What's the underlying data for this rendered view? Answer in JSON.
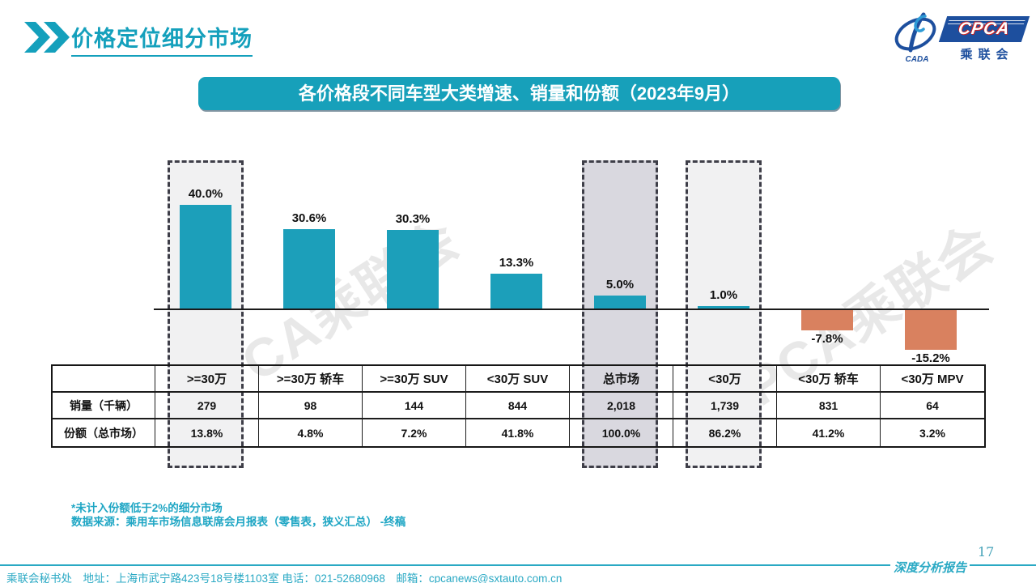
{
  "header": {
    "title": "价格定位细分市场"
  },
  "logo": {
    "cpca": "CPCA",
    "cada": "CADA",
    "subtitle": "乘联会"
  },
  "banner": {
    "text": "各价格段不同车型大类增速、销量和份额（2023年9月）"
  },
  "watermark": {
    "text": "CPCA乘联会"
  },
  "chart_data": {
    "type": "bar",
    "title": "各价格段不同车型大类增速、销量和份额（2023年9月）",
    "categories": [
      ">=30万",
      ">=30万 轿车",
      ">=30万 SUV",
      "<30万 SUV",
      "总市场",
      "<30万",
      "<30万 轿车",
      "<30万 MPV"
    ],
    "series": [
      {
        "name": "增速",
        "unit": "%",
        "values": [
          40.0,
          30.6,
          30.3,
          13.3,
          5.0,
          1.0,
          -7.8,
          -15.2
        ]
      },
      {
        "name": "销量（千辆）",
        "values": [
          279,
          98,
          144,
          844,
          2018,
          1739,
          831,
          64
        ]
      },
      {
        "name": "份额（总市场）",
        "unit": "%",
        "values": [
          13.8,
          4.8,
          7.2,
          41.8,
          100.0,
          86.2,
          41.2,
          3.2
        ]
      }
    ],
    "value_labels": [
      "40.0%",
      "30.6%",
      "30.3%",
      "13.3%",
      "5.0%",
      "1.0%",
      "-7.8%",
      "-15.2%"
    ],
    "positive_color": "#1C9FBA",
    "negative_color": "#D9815F",
    "highlight_boxes": [
      {
        "category": ">=30万",
        "fill": "#F1F1F2"
      },
      {
        "category": "总市场",
        "fill": "#D9D8DF"
      },
      {
        "category": "<30万",
        "fill": "#F1F1F2"
      }
    ],
    "ylim": [
      -20,
      45
    ],
    "grid": false,
    "legend": "none"
  },
  "table": {
    "row_labels": [
      "销量（千辆）",
      "份额（总市场）"
    ],
    "columns": [
      ">=30万",
      ">=30万 轿车",
      ">=30万 SUV",
      "<30万 SUV",
      "总市场",
      "<30万",
      "<30万 轿车",
      "<30万 MPV"
    ],
    "sales": [
      "279",
      "98",
      "144",
      "844",
      "2,018",
      "1,739",
      "831",
      "64"
    ],
    "share": [
      "13.8%",
      "4.8%",
      "7.2%",
      "41.8%",
      "100.0%",
      "86.2%",
      "41.2%",
      "3.2%"
    ]
  },
  "footnotes": [
    "*未计入份额低于2%的细分市场",
    "数据来源：乘用车市场信息联席会月报表（零售表，狭义汇总） -终稿"
  ],
  "footer": {
    "contact": "乘联会秘书处　地址：上海市武宁路423号18号楼1103室 电话：021-52680968　邮箱：cpcanews@sxtauto.com.cn",
    "report_label": "深度分析报告",
    "page_number": "17"
  }
}
